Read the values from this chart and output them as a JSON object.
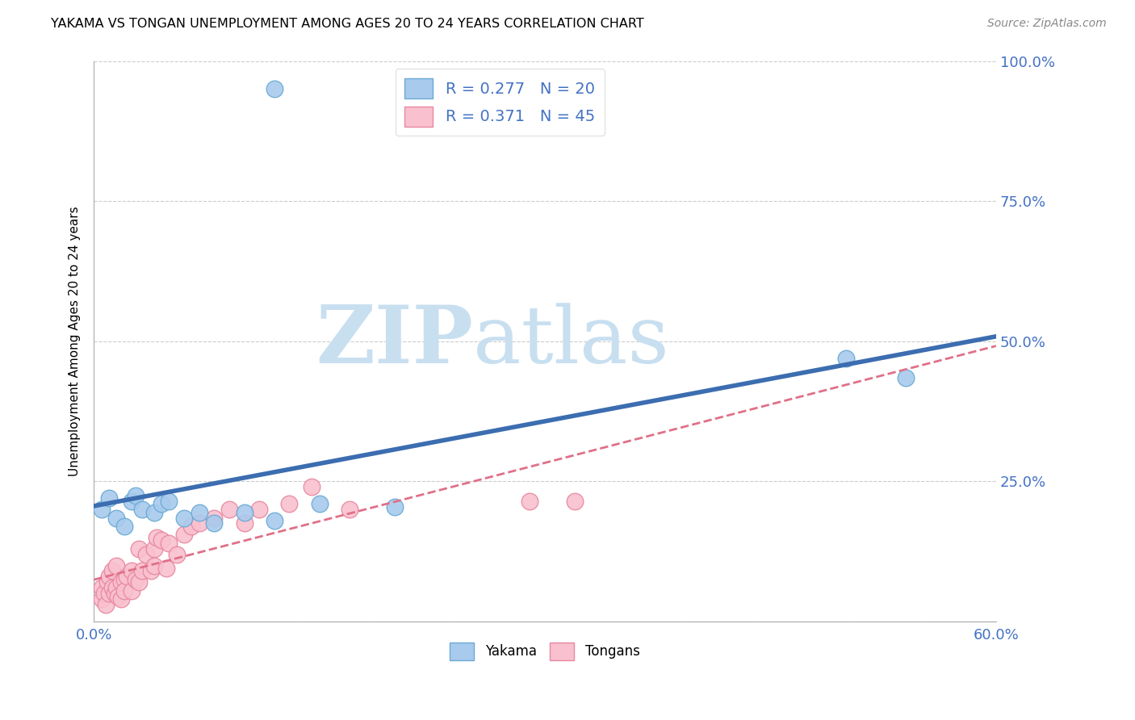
{
  "title": "YAKAMA VS TONGAN UNEMPLOYMENT AMONG AGES 20 TO 24 YEARS CORRELATION CHART",
  "source": "Source: ZipAtlas.com",
  "ylabel": "Unemployment Among Ages 20 to 24 years",
  "xmin": 0.0,
  "xmax": 0.6,
  "ymin": 0.0,
  "ymax": 1.0,
  "x_ticks": [
    0.0,
    0.1,
    0.2,
    0.3,
    0.4,
    0.5,
    0.6
  ],
  "x_tick_labels": [
    "0.0%",
    "",
    "",
    "",
    "",
    "",
    "60.0%"
  ],
  "y_ticks": [
    0.0,
    0.25,
    0.5,
    0.75,
    1.0
  ],
  "y_tick_labels": [
    "",
    "25.0%",
    "50.0%",
    "75.0%",
    "100.0%"
  ],
  "yakama_color": "#a8caed",
  "yakama_edge": "#6aaad4",
  "tongan_color": "#f9c0cf",
  "tongan_edge": "#e888a0",
  "trendline_yakama_color": "#3c6db0",
  "trendline_tongan_color": "#e07088",
  "R_yakama": 0.277,
  "N_yakama": 20,
  "R_tongan": 0.371,
  "N_tongan": 45,
  "yakama_x": [
    0.005,
    0.01,
    0.015,
    0.02,
    0.025,
    0.028,
    0.032,
    0.04,
    0.045,
    0.05,
    0.06,
    0.07,
    0.08,
    0.1,
    0.12,
    0.15,
    0.2,
    0.12,
    0.5,
    0.54
  ],
  "yakama_y": [
    0.2,
    0.22,
    0.185,
    0.17,
    0.215,
    0.225,
    0.2,
    0.195,
    0.21,
    0.215,
    0.185,
    0.195,
    0.175,
    0.195,
    0.18,
    0.21,
    0.205,
    0.95,
    0.47,
    0.435
  ],
  "tongan_x": [
    0.005,
    0.005,
    0.007,
    0.008,
    0.009,
    0.01,
    0.01,
    0.012,
    0.012,
    0.014,
    0.015,
    0.015,
    0.016,
    0.018,
    0.018,
    0.02,
    0.02,
    0.022,
    0.025,
    0.025,
    0.028,
    0.03,
    0.03,
    0.032,
    0.035,
    0.038,
    0.04,
    0.04,
    0.042,
    0.045,
    0.048,
    0.05,
    0.055,
    0.06,
    0.065,
    0.07,
    0.08,
    0.09,
    0.1,
    0.11,
    0.13,
    0.145,
    0.17,
    0.29,
    0.32
  ],
  "tongan_y": [
    0.06,
    0.04,
    0.05,
    0.03,
    0.07,
    0.08,
    0.05,
    0.06,
    0.09,
    0.05,
    0.06,
    0.1,
    0.045,
    0.04,
    0.07,
    0.075,
    0.055,
    0.08,
    0.09,
    0.055,
    0.075,
    0.13,
    0.07,
    0.09,
    0.12,
    0.09,
    0.13,
    0.1,
    0.15,
    0.145,
    0.095,
    0.14,
    0.12,
    0.155,
    0.17,
    0.175,
    0.185,
    0.2,
    0.175,
    0.2,
    0.21,
    0.24,
    0.2,
    0.215,
    0.215
  ],
  "watermark_zip_color": "#c8dff0",
  "watermark_atlas_color": "#c8dff0",
  "legend_label_yakama": "Yakama",
  "legend_label_tongan": "Tongans"
}
